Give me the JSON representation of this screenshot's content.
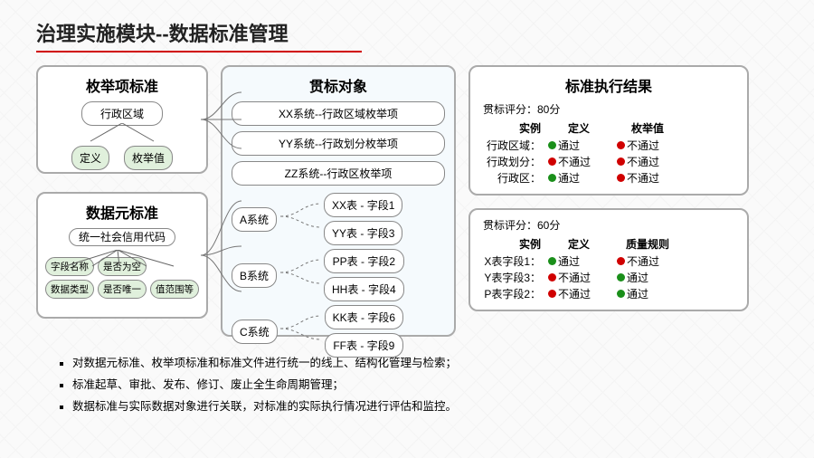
{
  "colors": {
    "red": "#d00000",
    "green": "#1a8f1a",
    "border": "#aaaaaa",
    "node_green": "#e0f0dc",
    "panel_blue": "#f5fafd"
  },
  "title": "治理实施模块--数据标准管理",
  "enum_std": {
    "head": "枚举项标准",
    "root": "行政区域",
    "children": [
      "定义",
      "枚举值"
    ]
  },
  "elem_std": {
    "head": "数据元标准",
    "root": "统一社会信用代码",
    "children": [
      "字段名称",
      "是否为空",
      "数据类型",
      "是否唯一",
      "值范围等"
    ]
  },
  "targets": {
    "head": "贯标对象",
    "top": [
      "XX系统--行政区域枚举项",
      "YY系统--行政划分枚举项",
      "ZZ系统--行政区枚举项"
    ],
    "systems": [
      {
        "name": "A系统",
        "fields": [
          "XX表 - 字段1",
          "YY表 - 字段3"
        ]
      },
      {
        "name": "B系统",
        "fields": [
          "PP表 - 字段2",
          "HH表 - 字段4"
        ]
      },
      {
        "name": "C系统",
        "fields": [
          "KK表 - 字段6",
          "FF表 - 字段9"
        ]
      }
    ]
  },
  "results": {
    "head": "标准执行结果",
    "group1": {
      "score_label": "贯标评分：80分",
      "cols": [
        "实例",
        "定义",
        "枚举值"
      ],
      "rows": [
        {
          "name": "行政区域：",
          "vals": [
            {
              "pass": true,
              "txt": "通过"
            },
            {
              "pass": false,
              "txt": "不通过"
            }
          ]
        },
        {
          "name": "行政划分：",
          "vals": [
            {
              "pass": false,
              "txt": "不通过"
            },
            {
              "pass": false,
              "txt": "不通过"
            }
          ]
        },
        {
          "name": "行政区：",
          "vals": [
            {
              "pass": true,
              "txt": "通过"
            },
            {
              "pass": false,
              "txt": "不通过"
            }
          ]
        }
      ]
    },
    "group2": {
      "score_label": "贯标评分：60分",
      "cols": [
        "实例",
        "定义",
        "质量规则"
      ],
      "rows": [
        {
          "name": "X表字段1：",
          "vals": [
            {
              "pass": true,
              "txt": "通过"
            },
            {
              "pass": false,
              "txt": "不通过"
            }
          ]
        },
        {
          "name": "Y表字段3：",
          "vals": [
            {
              "pass": false,
              "txt": "不通过"
            },
            {
              "pass": true,
              "txt": "通过"
            }
          ]
        },
        {
          "name": "P表字段2：",
          "vals": [
            {
              "pass": false,
              "txt": "不通过"
            },
            {
              "pass": true,
              "txt": "通过"
            }
          ]
        }
      ]
    }
  },
  "bullets": [
    "对数据元标准、枚举项标准和标准文件进行统一的线上、结构化管理与检索；",
    "标准起草、审批、发布、修订、废止全生命周期管理；",
    "数据标准与实际数据对象进行关联，对标准的实际执行情况进行评估和监控。"
  ]
}
